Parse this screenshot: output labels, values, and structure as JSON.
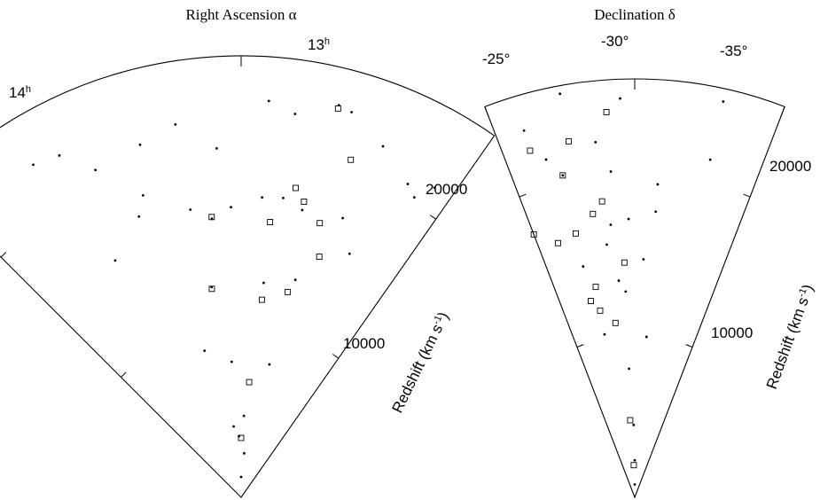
{
  "chart_data": [
    {
      "type": "scatter",
      "title": "Right Ascension α",
      "angle_labels": [
        "14",
        "13"
      ],
      "angle_superscript": "h",
      "radial_label": "Redshift (km s",
      "radial_label_exp": "-1",
      "radial_label_close": ")",
      "radial_tick_labels": [
        "10000",
        "20000"
      ],
      "radial_range": [
        0,
        26000
      ],
      "series": [
        {
          "marker": "dot",
          "points": [
            [
              0.8,
              21500
            ],
            [
              0.75,
              20400
            ],
            [
              0.7,
              20900
            ],
            [
              0.55,
              22300
            ],
            [
              0.4,
              23600
            ],
            [
              0.35,
              23800
            ],
            [
              0.2,
              22800
            ],
            [
              0.1,
              23400
            ],
            [
              -0.1,
              20600
            ],
            [
              -0.25,
              22300
            ],
            [
              -0.4,
              21600
            ],
            [
              -0.6,
              21100
            ],
            [
              -0.7,
              22800
            ],
            [
              -0.8,
              23100
            ],
            [
              0.5,
              17500
            ],
            [
              0.3,
              17300
            ],
            [
              0.2,
              17800
            ],
            [
              0.1,
              17700
            ],
            [
              -0.05,
              17100
            ],
            [
              -0.15,
              16500
            ],
            [
              -0.25,
              17200
            ],
            [
              -0.45,
              18700
            ],
            [
              -0.5,
              17600
            ],
            [
              -0.7,
              15800
            ],
            [
              0.6,
              15700
            ],
            [
              0.35,
              13200
            ],
            [
              0.15,
              12700
            ],
            [
              -0.2,
              12500
            ],
            [
              0.3,
              8000
            ],
            [
              -0.1,
              8000
            ],
            [
              -0.35,
              8900
            ],
            [
              0.05,
              4800
            ],
            [
              0.1,
              2600
            ],
            [
              -0.05,
              3600
            ],
            [
              -0.15,
              4200
            ],
            [
              0.0,
              1200
            ]
          ]
        },
        {
          "marker": "square",
          "points": [
            [
              0.35,
              23600
            ],
            [
              0.45,
              20900
            ],
            [
              0.25,
              18500
            ],
            [
              0.15,
              16300
            ],
            [
              0.4,
              16800
            ],
            [
              0.3,
              17800
            ],
            [
              -0.15,
              16600
            ],
            [
              0.45,
              14900
            ],
            [
              0.32,
              12400
            ],
            [
              0.15,
              11700
            ],
            [
              -0.2,
              12400
            ],
            [
              0.1,
              6800
            ],
            [
              0.0,
              3500
            ]
          ]
        }
      ]
    },
    {
      "type": "scatter",
      "title": "Declination δ",
      "angle_labels": [
        "-25°",
        "-30°",
        "-35°"
      ],
      "radial_label": "Redshift (km s",
      "radial_label_exp": "-1",
      "radial_label_close": ")",
      "radial_tick_labels": [
        "10000",
        "20000"
      ],
      "radial_range": [
        0,
        26000
      ],
      "series": [
        {
          "marker": "dot",
          "points": [
            [
              -27,
              25200
            ],
            [
              -30.5,
              24800
            ],
            [
              -32.5,
              25500
            ],
            [
              -34,
              23800
            ],
            [
              -31.5,
              22200
            ],
            [
              -33.5,
              21700
            ],
            [
              -27,
              21500
            ],
            [
              -29,
              19500
            ],
            [
              -31,
              20300
            ],
            [
              -33,
              20500
            ],
            [
              -29,
              17800
            ],
            [
              -30.3,
              17300
            ],
            [
              -31.2,
              17000
            ],
            [
              -31.5,
              15800
            ],
            [
              -33,
              14700
            ],
            [
              -29.5,
              14800
            ],
            [
              -31,
              13500
            ],
            [
              -30.6,
              12800
            ],
            [
              -32.5,
              10300
            ],
            [
              -29,
              10000
            ],
            [
              -30.6,
              8000
            ],
            [
              -30.2,
              4500
            ],
            [
              -30.0,
              2300
            ],
            [
              -30.0,
              800
            ]
          ]
        },
        {
          "marker": "square",
          "points": [
            [
              -31,
              24000
            ],
            [
              -32.5,
              22500
            ],
            [
              -34,
              22500
            ],
            [
              -33,
              20500
            ],
            [
              -31.5,
              18500
            ],
            [
              -32,
              17800
            ],
            [
              -33,
              16800
            ],
            [
              -35,
              17500
            ],
            [
              -34,
              16500
            ],
            [
              -30.6,
              14600
            ],
            [
              -32.5,
              13300
            ],
            [
              -33,
              12500
            ],
            [
              -32.5,
              11800
            ],
            [
              -31.5,
              10900
            ],
            [
              -30.8,
              4800
            ],
            [
              -30.4,
              2000
            ]
          ]
        }
      ]
    }
  ]
}
